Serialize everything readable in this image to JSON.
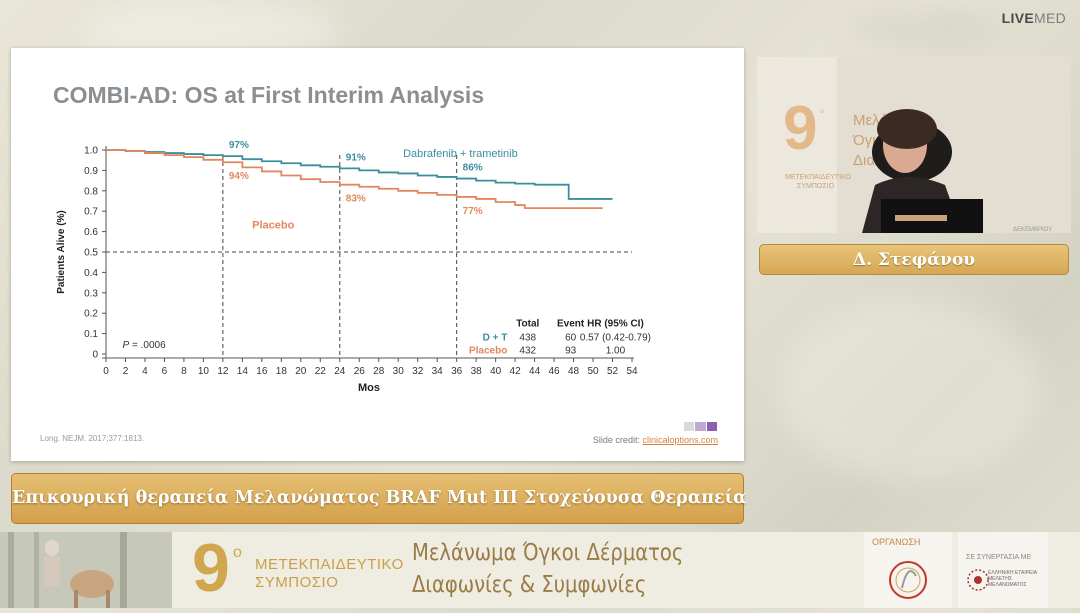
{
  "brand": {
    "part1": "LIVE",
    "part2": "MED"
  },
  "slide": {
    "title": "COMBI-AD: OS at First Interim Analysis",
    "citation": "Long. NEJM. 2017;377:1813.",
    "credit_prefix": "Slide credit: ",
    "credit_link": "clinicaloptions.com"
  },
  "chart_data": {
    "type": "line",
    "title": "COMBI-AD: OS at First Interim Analysis",
    "xlabel": "Mos",
    "ylabel": "Patients Alive (%)",
    "xlim": [
      0,
      54
    ],
    "ylim": [
      0,
      1.0
    ],
    "x_ticks": [
      "0",
      "2",
      "4",
      "6",
      "8",
      "10",
      "12",
      "14",
      "16",
      "18",
      "20",
      "22",
      "24",
      "26",
      "28",
      "30",
      "32",
      "34",
      "36",
      "38",
      "40",
      "42",
      "44",
      "46",
      "48",
      "50",
      "52",
      "54"
    ],
    "y_ticks": [
      "0",
      "0.1",
      "0.2",
      "0.3",
      "0.4",
      "0.5",
      "0.6",
      "0.7",
      "0.8",
      "0.9",
      "1.0"
    ],
    "reference_line_y": 0.5,
    "landmark_x": [
      12,
      24,
      36
    ],
    "series": [
      {
        "name": "Dabrafenib + trametinib",
        "color": "#3a8f9e",
        "x": [
          0,
          2,
          4,
          6,
          8,
          10,
          12,
          14,
          16,
          18,
          20,
          22,
          24,
          26,
          28,
          30,
          32,
          34,
          36,
          38,
          40,
          42,
          44,
          46,
          47.5,
          47.5,
          48.5,
          50,
          51,
          52
        ],
        "y": [
          1.0,
          0.995,
          0.99,
          0.985,
          0.98,
          0.975,
          0.97,
          0.955,
          0.945,
          0.935,
          0.925,
          0.918,
          0.91,
          0.9,
          0.89,
          0.885,
          0.875,
          0.868,
          0.86,
          0.85,
          0.84,
          0.835,
          0.83,
          0.83,
          0.83,
          0.76,
          0.76,
          0.76,
          0.76,
          0.76
        ],
        "labels": [
          {
            "x": 12,
            "text": "97%"
          },
          {
            "x": 24,
            "text": "91%"
          },
          {
            "x": 36,
            "text": "86%"
          }
        ]
      },
      {
        "name": "Placebo",
        "color": "#e2875d",
        "x": [
          0,
          2,
          4,
          6,
          8,
          10,
          12,
          14,
          16,
          18,
          20,
          22,
          24,
          26,
          28,
          30,
          32,
          34,
          36,
          38,
          40,
          42,
          43,
          44,
          46,
          48,
          50,
          51
        ],
        "y": [
          1.0,
          0.995,
          0.985,
          0.975,
          0.965,
          0.952,
          0.94,
          0.915,
          0.895,
          0.875,
          0.857,
          0.843,
          0.83,
          0.82,
          0.81,
          0.8,
          0.79,
          0.78,
          0.77,
          0.76,
          0.745,
          0.73,
          0.715,
          0.715,
          0.715,
          0.715,
          0.715,
          0.715
        ],
        "labels": [
          {
            "x": 12,
            "text": "94%"
          },
          {
            "x": 24,
            "text": "83%"
          },
          {
            "x": 36,
            "text": "77%"
          }
        ]
      }
    ],
    "series_labels": {
      "dt": "Dabrafenib + trametinib",
      "placebo": "Placebo"
    },
    "p_value": "= .0006",
    "p_label": "P",
    "table": {
      "headers": [
        "Total",
        "Event",
        "HR (95% CI)"
      ],
      "rows": [
        {
          "arm": "D + T",
          "total": "438",
          "event": "60",
          "hr": "0.57 (0.42-0.79)"
        },
        {
          "arm": "Placebo",
          "total": "432",
          "event": "93",
          "hr": "1.00"
        }
      ]
    }
  },
  "speaker": {
    "name": "Δ. Στεφάνου"
  },
  "topic": {
    "text": "Επικουρική θεραπεία Μελανώματος BRAF Mut III Στοχεύουσα Θεραπεία"
  },
  "banner": {
    "nine": "9",
    "degree": "ο",
    "symposium_line1": "ΜΕΤΕΚΠΑΙΔΕΥΤΙΚΟ",
    "symposium_line2": "ΣΥΜΠΟΣΙΟ",
    "title_line1": "Μελάνωμα Όγκοι Δέρματος",
    "title_line2": "Διαφωνίες & Συμφωνίες",
    "org_label": "ΟΡΓΑΝΩΣΗ",
    "collab_label": "ΣΕ ΣΥΝΕΡΓΑΣΙΑ ΜΕ",
    "collab_text": "ΕΛΛΗΝΙΚΗ ΕΤΑΙΡΕΙΑ ΜΕΛΕΤΗΣ ΜΕΛΑΝΩΜΑΤΟΣ"
  },
  "colors": {
    "gold": "#d6a753",
    "teal": "#3a8f9e",
    "orange": "#e2875d"
  }
}
